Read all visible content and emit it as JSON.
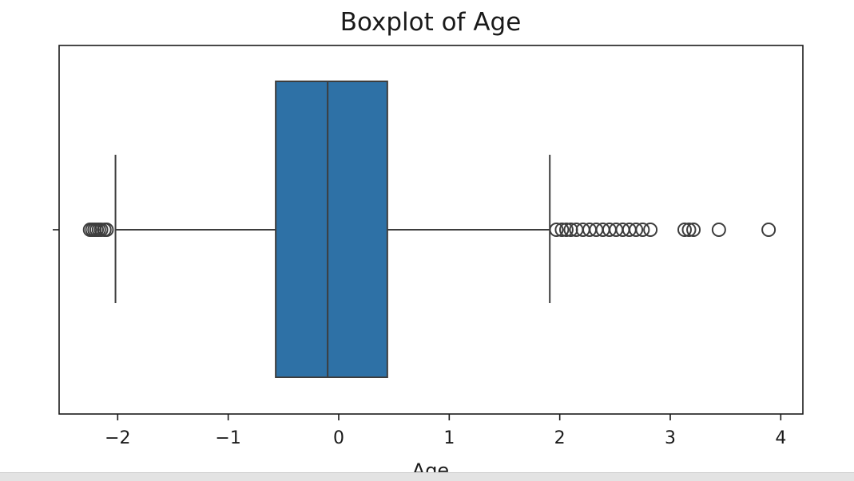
{
  "chart_data": {
    "type": "boxplot",
    "title": "Boxplot of Age",
    "xlabel": "Age",
    "ylabel": "",
    "xlim": [
      -2.53,
      4.2
    ],
    "x_ticks": [
      {
        "value": -2,
        "label": "−2"
      },
      {
        "value": -1,
        "label": "−1"
      },
      {
        "value": 0,
        "label": "0"
      },
      {
        "value": 1,
        "label": "1"
      },
      {
        "value": 2,
        "label": "2"
      },
      {
        "value": 3,
        "label": "3"
      },
      {
        "value": 4,
        "label": "4"
      }
    ],
    "box_color": "#2e71a6",
    "line_color": "#3d3d3d",
    "box": {
      "whisker_low": -2.02,
      "q1": -0.57,
      "median": -0.1,
      "q3": 0.44,
      "whisker_high": 1.91
    },
    "outliers": [
      -2.25,
      -2.23,
      -2.21,
      -2.19,
      -2.17,
      -2.15,
      -2.12,
      -2.1,
      1.97,
      2.02,
      2.06,
      2.1,
      2.15,
      2.21,
      2.27,
      2.33,
      2.39,
      2.45,
      2.51,
      2.57,
      2.63,
      2.69,
      2.75,
      2.82,
      3.13,
      3.17,
      3.21,
      3.44,
      3.89
    ]
  }
}
